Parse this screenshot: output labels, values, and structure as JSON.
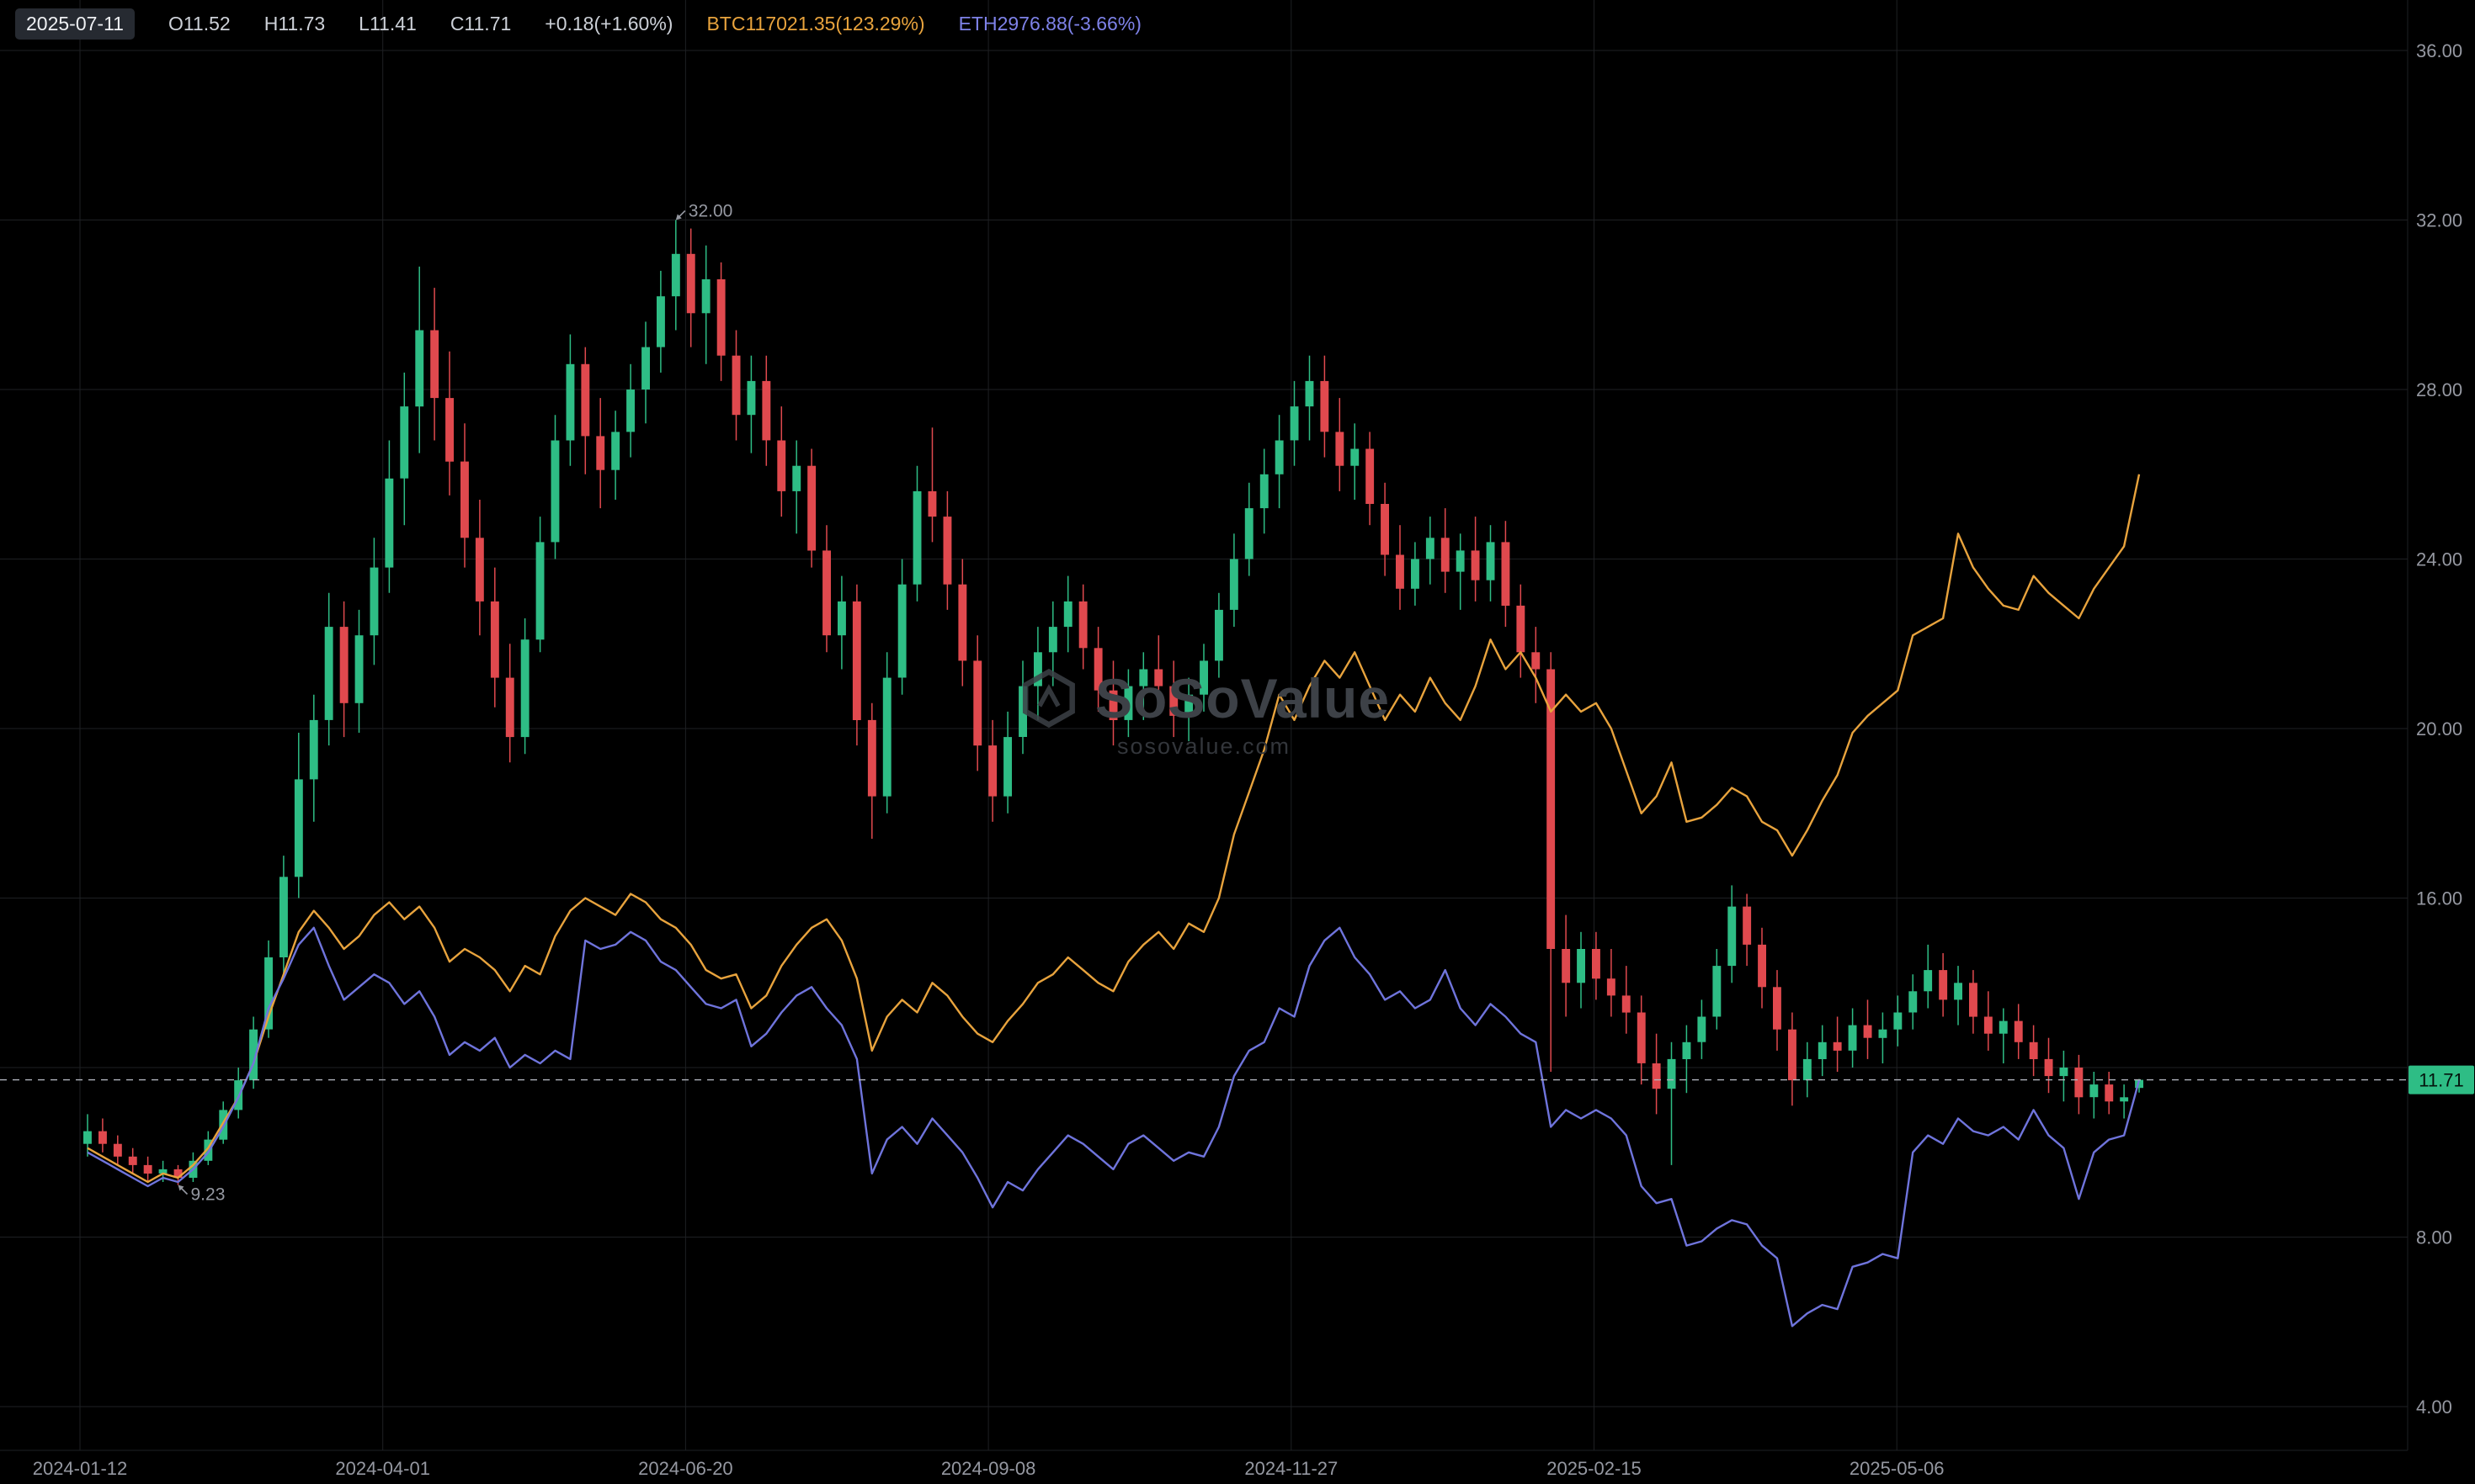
{
  "top_bar": {
    "date": "2025-07-11",
    "open": "O11.52",
    "high": "H11.73",
    "low": "L11.41",
    "close": "C11.71",
    "change": "+0.18(+1.60%)",
    "btc": "BTC117021.35(123.29%)",
    "eth": "ETH2976.88(-3.66%)"
  },
  "watermark": {
    "title": "SoSoValue",
    "subtitle": "sosovalue.com"
  },
  "colors": {
    "bg": "#000000",
    "grid": "#1e2023",
    "up": "#2ebd85",
    "down": "#e0494e",
    "btc_line": "#e8a33d",
    "eth_line": "#6f74dc",
    "axis_text": "#9598a1",
    "dashed": "#b2b5be",
    "badge_bg": "#2ebd85",
    "badge_text": "#04130c",
    "watermark": "#3d4147"
  },
  "chart_data": {
    "type": "candlestick+line",
    "title": "",
    "start_date": "2024-01-12",
    "end_date": "2025-07-11",
    "bar_interval_days": 4,
    "total_days": 546,
    "x_tick_labels": [
      "2024-01-12",
      "2024-04-01",
      "2024-06-20",
      "2024-09-08",
      "2024-11-27",
      "2025-02-15",
      "2025-05-06"
    ],
    "x_tick_day_offsets": [
      0,
      80,
      160,
      240,
      320,
      400,
      480
    ],
    "y_ticks": [
      "36.00",
      "32.00",
      "28.00",
      "24.00",
      "20.00",
      "16.00",
      "8.00",
      "4.00"
    ],
    "y_grid_prices": [
      36,
      32,
      28,
      24,
      20,
      16,
      12,
      8,
      4
    ],
    "ylim": [
      3.0,
      37.2
    ],
    "current_price": {
      "label": "11.71",
      "value": 11.71
    },
    "annotations": [
      {
        "label": "32.00",
        "bar_index": 39,
        "price": 32.0,
        "position": "above"
      },
      {
        "label": "9.23",
        "bar_index": 6,
        "price": 9.23,
        "position": "below"
      }
    ],
    "candles": [
      [
        10.2,
        10.9,
        9.9,
        10.5
      ],
      [
        10.5,
        10.8,
        10.0,
        10.2
      ],
      [
        10.2,
        10.4,
        9.7,
        9.9
      ],
      [
        9.9,
        10.1,
        9.5,
        9.7
      ],
      [
        9.7,
        9.9,
        9.3,
        9.5
      ],
      [
        9.5,
        9.8,
        9.3,
        9.6
      ],
      [
        9.6,
        9.7,
        9.23,
        9.4
      ],
      [
        9.4,
        10.0,
        9.3,
        9.8
      ],
      [
        9.8,
        10.5,
        9.7,
        10.3
      ],
      [
        10.3,
        11.2,
        10.2,
        11.0
      ],
      [
        11.0,
        12.0,
        10.8,
        11.7
      ],
      [
        11.7,
        13.2,
        11.5,
        12.9
      ],
      [
        12.9,
        15.0,
        12.7,
        14.6
      ],
      [
        14.6,
        17.0,
        14.2,
        16.5
      ],
      [
        16.5,
        19.9,
        16.0,
        18.8
      ],
      [
        18.8,
        20.8,
        17.8,
        20.2
      ],
      [
        20.2,
        23.2,
        19.6,
        22.4
      ],
      [
        22.4,
        23.0,
        19.8,
        20.6
      ],
      [
        20.6,
        22.8,
        19.9,
        22.2
      ],
      [
        22.2,
        24.5,
        21.5,
        23.8
      ],
      [
        23.8,
        26.8,
        23.2,
        25.9
      ],
      [
        25.9,
        28.4,
        24.8,
        27.6
      ],
      [
        27.6,
        30.9,
        26.5,
        29.4
      ],
      [
        29.4,
        30.4,
        26.8,
        27.8
      ],
      [
        27.8,
        28.9,
        25.5,
        26.3
      ],
      [
        26.3,
        27.2,
        23.8,
        24.5
      ],
      [
        24.5,
        25.4,
        22.2,
        23.0
      ],
      [
        23.0,
        23.8,
        20.5,
        21.2
      ],
      [
        21.2,
        22.0,
        19.2,
        19.8
      ],
      [
        19.8,
        22.6,
        19.4,
        22.1
      ],
      [
        22.1,
        25.0,
        21.8,
        24.4
      ],
      [
        24.4,
        27.4,
        24.0,
        26.8
      ],
      [
        26.8,
        29.3,
        26.2,
        28.6
      ],
      [
        28.6,
        29.0,
        26.0,
        26.9
      ],
      [
        26.9,
        27.8,
        25.2,
        26.1
      ],
      [
        26.1,
        27.5,
        25.4,
        27.0
      ],
      [
        27.0,
        28.6,
        26.4,
        28.0
      ],
      [
        28.0,
        29.6,
        27.2,
        29.0
      ],
      [
        29.0,
        30.8,
        28.4,
        30.2
      ],
      [
        30.2,
        32.0,
        29.4,
        31.2
      ],
      [
        31.2,
        31.8,
        29.0,
        29.8
      ],
      [
        29.8,
        31.4,
        28.6,
        30.6
      ],
      [
        30.6,
        31.0,
        28.2,
        28.8
      ],
      [
        28.8,
        29.4,
        26.8,
        27.4
      ],
      [
        27.4,
        28.8,
        26.5,
        28.2
      ],
      [
        28.2,
        28.8,
        26.2,
        26.8
      ],
      [
        26.8,
        27.6,
        25.0,
        25.6
      ],
      [
        25.6,
        26.8,
        24.6,
        26.2
      ],
      [
        26.2,
        26.6,
        23.8,
        24.2
      ],
      [
        24.2,
        24.8,
        21.8,
        22.2
      ],
      [
        22.2,
        23.6,
        21.4,
        23.0
      ],
      [
        23.0,
        23.4,
        19.6,
        20.2
      ],
      [
        20.2,
        20.6,
        17.4,
        18.4
      ],
      [
        18.4,
        21.8,
        18.0,
        21.2
      ],
      [
        21.2,
        24.0,
        20.8,
        23.4
      ],
      [
        23.4,
        26.2,
        23.0,
        25.6
      ],
      [
        25.6,
        27.1,
        24.4,
        25.0
      ],
      [
        25.0,
        25.6,
        22.8,
        23.4
      ],
      [
        23.4,
        24.0,
        21.0,
        21.6
      ],
      [
        21.6,
        22.2,
        19.0,
        19.6
      ],
      [
        19.6,
        20.2,
        17.8,
        18.4
      ],
      [
        18.4,
        20.4,
        18.0,
        19.8
      ],
      [
        19.8,
        21.6,
        19.4,
        21.0
      ],
      [
        21.0,
        22.4,
        20.2,
        21.8
      ],
      [
        21.8,
        23.0,
        21.0,
        22.4
      ],
      [
        22.4,
        23.6,
        21.8,
        23.0
      ],
      [
        23.0,
        23.4,
        21.4,
        21.9
      ],
      [
        21.9,
        22.4,
        20.4,
        20.9
      ],
      [
        20.9,
        21.6,
        19.6,
        20.2
      ],
      [
        20.2,
        21.4,
        19.8,
        21.0
      ],
      [
        21.0,
        21.8,
        20.2,
        21.4
      ],
      [
        21.4,
        22.2,
        20.6,
        21.0
      ],
      [
        21.0,
        21.6,
        19.8,
        20.3
      ],
      [
        20.3,
        21.2,
        19.7,
        20.8
      ],
      [
        20.8,
        22.0,
        20.4,
        21.6
      ],
      [
        21.6,
        23.2,
        21.2,
        22.8
      ],
      [
        22.8,
        24.6,
        22.4,
        24.0
      ],
      [
        24.0,
        25.8,
        23.6,
        25.2
      ],
      [
        25.2,
        26.6,
        24.6,
        26.0
      ],
      [
        26.0,
        27.4,
        25.2,
        26.8
      ],
      [
        26.8,
        28.2,
        26.2,
        27.6
      ],
      [
        27.6,
        28.8,
        26.8,
        28.2
      ],
      [
        28.2,
        28.8,
        26.4,
        27.0
      ],
      [
        27.0,
        27.8,
        25.6,
        26.2
      ],
      [
        26.2,
        27.2,
        25.4,
        26.6
      ],
      [
        26.6,
        27.0,
        24.8,
        25.3
      ],
      [
        25.3,
        25.8,
        23.6,
        24.1
      ],
      [
        24.1,
        24.8,
        22.8,
        23.3
      ],
      [
        23.3,
        24.4,
        22.9,
        24.0
      ],
      [
        24.0,
        25.0,
        23.4,
        24.5
      ],
      [
        24.5,
        25.2,
        23.2,
        23.7
      ],
      [
        23.7,
        24.6,
        22.8,
        24.2
      ],
      [
        24.2,
        25.0,
        23.0,
        23.5
      ],
      [
        23.5,
        24.8,
        23.0,
        24.4
      ],
      [
        24.4,
        24.9,
        22.4,
        22.9
      ],
      [
        22.9,
        23.4,
        21.2,
        21.8
      ],
      [
        21.8,
        22.4,
        20.6,
        21.4
      ],
      [
        21.4,
        21.8,
        11.9,
        14.8
      ],
      [
        14.8,
        15.6,
        13.2,
        14.0
      ],
      [
        14.0,
        15.2,
        13.4,
        14.8
      ],
      [
        14.8,
        15.2,
        13.6,
        14.1
      ],
      [
        14.1,
        14.8,
        13.2,
        13.7
      ],
      [
        13.7,
        14.4,
        12.8,
        13.3
      ],
      [
        13.3,
        13.7,
        11.6,
        12.1
      ],
      [
        12.1,
        12.8,
        10.9,
        11.5
      ],
      [
        11.5,
        12.6,
        9.7,
        12.2
      ],
      [
        12.2,
        13.0,
        11.4,
        12.6
      ],
      [
        12.6,
        13.6,
        12.2,
        13.2
      ],
      [
        13.2,
        14.8,
        12.9,
        14.4
      ],
      [
        14.4,
        16.3,
        14.0,
        15.8
      ],
      [
        15.8,
        16.1,
        14.4,
        14.9
      ],
      [
        14.9,
        15.3,
        13.4,
        13.9
      ],
      [
        13.9,
        14.3,
        12.4,
        12.9
      ],
      [
        12.9,
        13.3,
        11.1,
        11.7
      ],
      [
        11.7,
        12.6,
        11.3,
        12.2
      ],
      [
        12.2,
        13.0,
        11.8,
        12.6
      ],
      [
        12.6,
        13.2,
        11.9,
        12.4
      ],
      [
        12.4,
        13.4,
        12.0,
        13.0
      ],
      [
        13.0,
        13.6,
        12.2,
        12.7
      ],
      [
        12.7,
        13.3,
        12.1,
        12.9
      ],
      [
        12.9,
        13.7,
        12.5,
        13.3
      ],
      [
        13.3,
        14.2,
        12.9,
        13.8
      ],
      [
        13.8,
        14.9,
        13.4,
        14.3
      ],
      [
        14.3,
        14.7,
        13.2,
        13.6
      ],
      [
        13.6,
        14.4,
        13.0,
        14.0
      ],
      [
        14.0,
        14.3,
        12.8,
        13.2
      ],
      [
        13.2,
        13.8,
        12.4,
        12.8
      ],
      [
        12.8,
        13.4,
        12.1,
        13.1
      ],
      [
        13.1,
        13.5,
        12.2,
        12.6
      ],
      [
        12.6,
        13.0,
        11.8,
        12.2
      ],
      [
        12.2,
        12.7,
        11.4,
        11.8
      ],
      [
        11.8,
        12.4,
        11.2,
        12.0
      ],
      [
        12.0,
        12.3,
        10.9,
        11.3
      ],
      [
        11.3,
        11.9,
        10.8,
        11.6
      ],
      [
        11.6,
        11.9,
        10.9,
        11.2
      ],
      [
        11.2,
        11.6,
        10.8,
        11.3
      ],
      [
        11.52,
        11.73,
        11.41,
        11.71
      ]
    ],
    "series": [
      {
        "name": "BTC",
        "color": "#e8a33d",
        "values": [
          10.1,
          9.9,
          9.7,
          9.5,
          9.3,
          9.5,
          9.4,
          9.7,
          10.1,
          10.7,
          11.3,
          12.1,
          13.2,
          14.2,
          15.2,
          15.7,
          15.3,
          14.8,
          15.1,
          15.6,
          15.9,
          15.5,
          15.8,
          15.3,
          14.5,
          14.8,
          14.6,
          14.3,
          13.8,
          14.4,
          14.2,
          15.1,
          15.7,
          16.0,
          15.8,
          15.6,
          16.1,
          15.9,
          15.5,
          15.3,
          14.9,
          14.3,
          14.1,
          14.2,
          13.4,
          13.7,
          14.4,
          14.9,
          15.3,
          15.5,
          15.0,
          14.1,
          12.4,
          13.2,
          13.6,
          13.3,
          14.0,
          13.7,
          13.2,
          12.8,
          12.6,
          13.1,
          13.5,
          14.0,
          14.2,
          14.6,
          14.3,
          14.0,
          13.8,
          14.5,
          14.9,
          15.2,
          14.8,
          15.4,
          15.2,
          16.0,
          17.5,
          18.5,
          19.5,
          20.8,
          20.2,
          21.0,
          21.6,
          21.2,
          21.8,
          21.0,
          20.2,
          20.8,
          20.4,
          21.2,
          20.6,
          20.2,
          21.0,
          22.1,
          21.4,
          21.8,
          21.2,
          20.4,
          20.8,
          20.4,
          20.6,
          20.0,
          19.0,
          18.0,
          18.4,
          19.2,
          17.8,
          17.9,
          18.2,
          18.6,
          18.4,
          17.8,
          17.6,
          17.0,
          17.6,
          18.3,
          18.9,
          19.9,
          20.3,
          20.6,
          20.9,
          22.2,
          22.4,
          22.6,
          24.6,
          23.8,
          23.3,
          22.9,
          22.8,
          23.6,
          23.2,
          22.9,
          22.6,
          23.3,
          23.8,
          24.3,
          26.0
        ]
      },
      {
        "name": "ETH",
        "color": "#6f74dc",
        "values": [
          10.0,
          9.8,
          9.6,
          9.4,
          9.2,
          9.4,
          9.3,
          9.6,
          10.0,
          10.6,
          11.3,
          12.1,
          13.4,
          14.1,
          14.9,
          15.3,
          14.4,
          13.6,
          13.9,
          14.2,
          14.0,
          13.5,
          13.8,
          13.2,
          12.3,
          12.6,
          12.4,
          12.7,
          12.0,
          12.3,
          12.1,
          12.4,
          12.2,
          15.0,
          14.8,
          14.9,
          15.2,
          15.0,
          14.5,
          14.3,
          13.9,
          13.5,
          13.4,
          13.6,
          12.5,
          12.8,
          13.3,
          13.7,
          13.9,
          13.4,
          13.0,
          12.2,
          9.5,
          10.3,
          10.6,
          10.2,
          10.8,
          10.4,
          10.0,
          9.4,
          8.7,
          9.3,
          9.1,
          9.6,
          10.0,
          10.4,
          10.2,
          9.9,
          9.6,
          10.2,
          10.4,
          10.1,
          9.8,
          10.0,
          9.9,
          10.6,
          11.8,
          12.4,
          12.6,
          13.4,
          13.2,
          14.4,
          15.0,
          15.3,
          14.6,
          14.2,
          13.6,
          13.8,
          13.4,
          13.6,
          14.3,
          13.4,
          13.0,
          13.5,
          13.2,
          12.8,
          12.6,
          10.6,
          11.0,
          10.8,
          11.0,
          10.8,
          10.4,
          9.2,
          8.8,
          8.9,
          7.8,
          7.9,
          8.2,
          8.4,
          8.3,
          7.8,
          7.5,
          5.9,
          6.2,
          6.4,
          6.3,
          7.3,
          7.4,
          7.6,
          7.5,
          10.0,
          10.4,
          10.2,
          10.8,
          10.5,
          10.4,
          10.6,
          10.3,
          11.0,
          10.4,
          10.1,
          8.9,
          10.0,
          10.3,
          10.4,
          11.7
        ]
      }
    ]
  }
}
